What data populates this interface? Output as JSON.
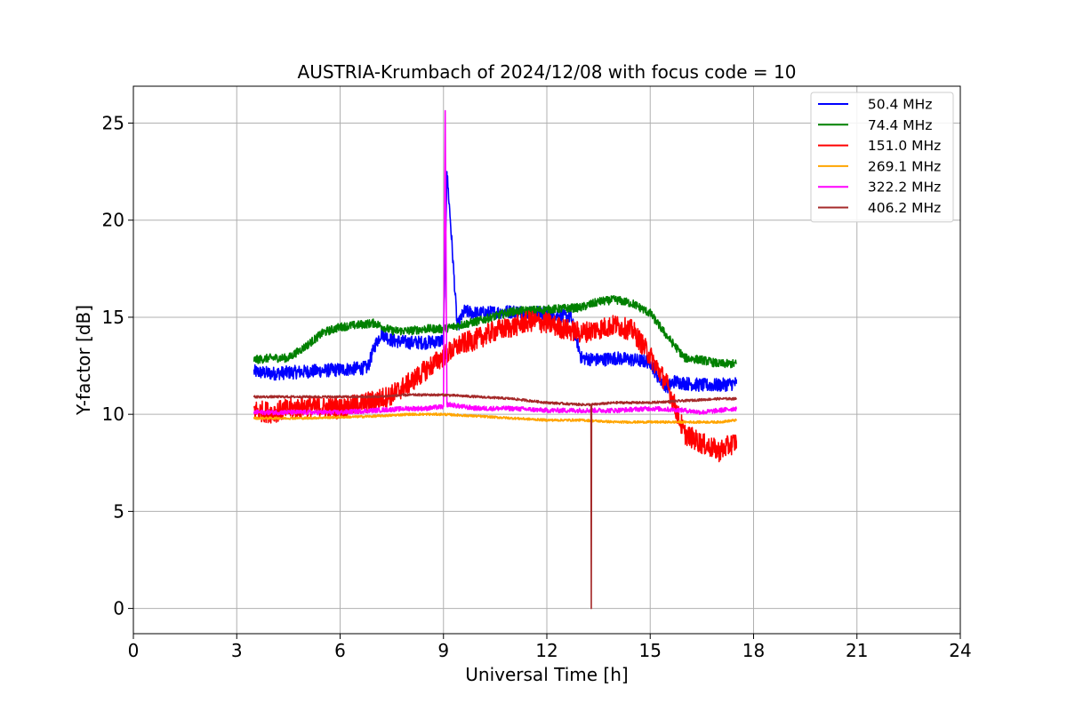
{
  "chart_data": {
    "type": "line",
    "title": "AUSTRIA-Krumbach of 2024/12/08 with focus code = 10",
    "xlabel": "Universal Time [h]",
    "ylabel": "Y-factor [dB]",
    "xlim": [
      0,
      24
    ],
    "ylim": [
      -1.3,
      26.9
    ],
    "xticks": [
      0,
      3,
      6,
      9,
      12,
      15,
      18,
      21,
      24
    ],
    "yticks": [
      0,
      5,
      10,
      15,
      20,
      25
    ],
    "grid": true,
    "legend_position": "top-right",
    "series": [
      {
        "name": "  50.4 MHz",
        "color": "#0000ff",
        "noise": 0.35,
        "x": [
          3.5,
          4.0,
          5.0,
          6.0,
          6.8,
          7.0,
          7.2,
          7.5,
          8.0,
          8.5,
          9.0,
          9.1,
          9.2,
          9.4,
          9.6,
          10.0,
          11.0,
          12.0,
          12.7,
          13.0,
          13.5,
          14.0,
          15.0,
          15.2,
          15.5,
          15.7,
          16.0,
          16.5,
          17.0,
          17.5
        ],
        "y": [
          12.2,
          12.1,
          12.2,
          12.3,
          12.4,
          13.5,
          14.2,
          13.8,
          13.7,
          13.7,
          13.8,
          22.5,
          20.0,
          14.5,
          15.3,
          15.2,
          15.3,
          15.2,
          15.0,
          12.9,
          12.8,
          12.9,
          12.7,
          12.0,
          11.4,
          11.7,
          11.6,
          11.5,
          11.5,
          11.6
        ]
      },
      {
        "name": "  74.4 MHz",
        "color": "#008000",
        "noise": 0.22,
        "x": [
          3.5,
          4.0,
          4.5,
          5.0,
          5.5,
          6.0,
          7.0,
          7.5,
          8.0,
          8.5,
          9.0,
          10.0,
          11.0,
          12.0,
          13.0,
          13.5,
          14.0,
          14.5,
          15.0,
          15.5,
          16.0,
          16.5,
          17.0,
          17.5
        ],
        "y": [
          12.8,
          12.9,
          12.9,
          13.5,
          14.2,
          14.5,
          14.7,
          14.3,
          14.3,
          14.4,
          14.4,
          14.8,
          15.3,
          15.4,
          15.5,
          15.8,
          15.9,
          15.7,
          15.2,
          14.0,
          12.9,
          12.8,
          12.6,
          12.6
        ]
      },
      {
        "name": "  151.0 MHz",
        "color": "#ff0000",
        "noise": 0.55,
        "x": [
          3.5,
          4.0,
          5.0,
          6.0,
          7.0,
          7.5,
          8.0,
          8.5,
          9.0,
          9.5,
          10.0,
          10.5,
          11.0,
          11.5,
          12.0,
          12.5,
          13.0,
          13.5,
          14.0,
          14.5,
          15.0,
          15.5,
          15.8,
          16.0,
          16.5,
          17.0,
          17.5
        ],
        "y": [
          10.2,
          10.1,
          10.4,
          10.3,
          10.7,
          11.0,
          11.6,
          12.3,
          13.0,
          13.6,
          13.9,
          14.3,
          14.5,
          14.8,
          14.7,
          14.4,
          14.2,
          14.4,
          14.6,
          14.3,
          13.0,
          11.5,
          10.0,
          9.0,
          8.5,
          8.1,
          8.6
        ]
      },
      {
        "name": "  269.1 MHz",
        "color": "#ffa500",
        "noise": 0.06,
        "x": [
          3.5,
          5.0,
          7.0,
          8.0,
          9.0,
          10.0,
          11.0,
          12.0,
          13.0,
          14.0,
          15.0,
          16.0,
          17.0,
          17.5
        ],
        "y": [
          9.8,
          9.8,
          9.9,
          10.0,
          10.0,
          9.9,
          9.8,
          9.7,
          9.7,
          9.6,
          9.6,
          9.6,
          9.6,
          9.7
        ]
      },
      {
        "name": "  322.2 MHz",
        "color": "#ff00ff",
        "noise": 0.12,
        "x": [
          3.5,
          5.0,
          6.0,
          7.0,
          8.0,
          8.5,
          9.0,
          9.05,
          9.1,
          9.2,
          9.5,
          10.0,
          11.0,
          12.0,
          13.0,
          14.0,
          15.0,
          16.0,
          16.5,
          17.0,
          17.5
        ],
        "y": [
          10.1,
          10.1,
          10.1,
          10.2,
          10.3,
          10.3,
          10.4,
          25.6,
          10.5,
          10.5,
          10.4,
          10.3,
          10.3,
          10.2,
          10.2,
          10.2,
          10.3,
          10.2,
          10.1,
          10.2,
          10.3
        ]
      },
      {
        "name": "  406.2 MHz",
        "color": "#a52a2a",
        "noise": 0.06,
        "x": [
          3.5,
          5.0,
          7.0,
          8.0,
          9.0,
          10.0,
          11.0,
          12.0,
          13.0,
          13.28,
          13.29,
          13.3,
          14.0,
          15.0,
          16.0,
          17.0,
          17.5
        ],
        "y": [
          10.9,
          10.9,
          10.9,
          11.0,
          11.0,
          10.9,
          10.8,
          10.6,
          10.5,
          10.5,
          0.0,
          10.5,
          10.6,
          10.6,
          10.7,
          10.8,
          10.8
        ]
      }
    ]
  }
}
